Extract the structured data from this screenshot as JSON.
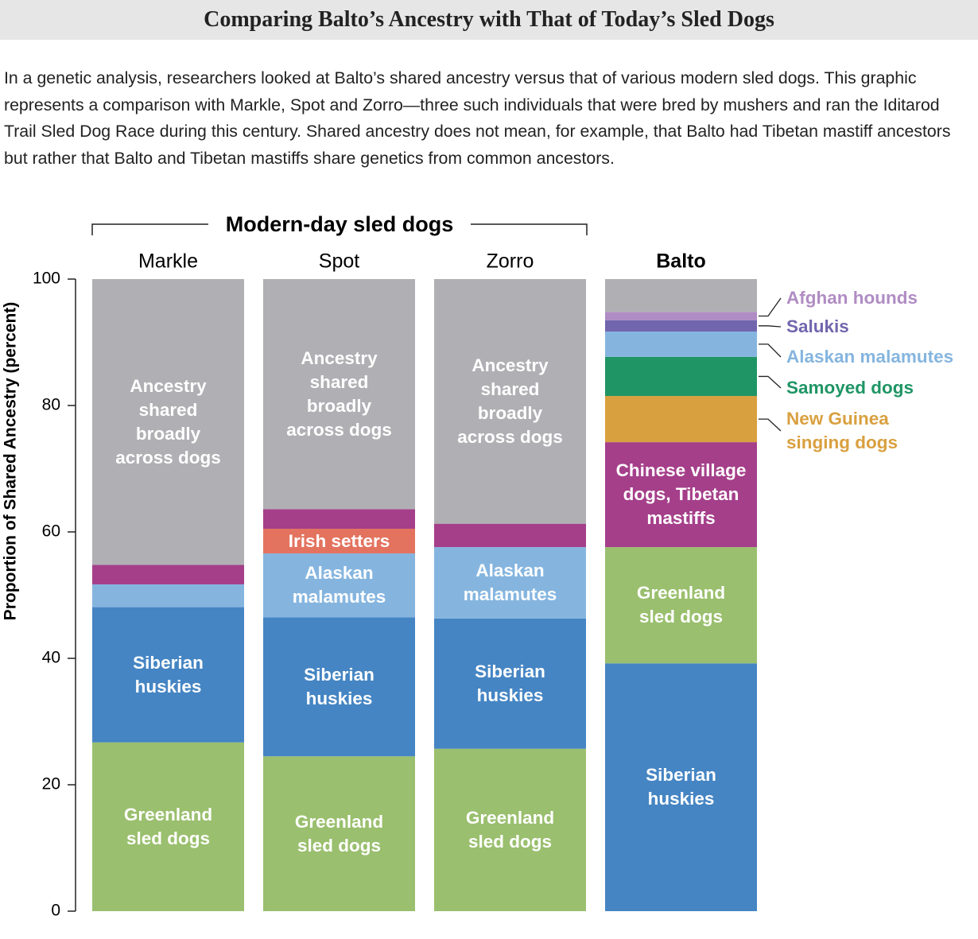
{
  "header": {
    "title": "Comparing Balto’s Ancestry with That of Today’s Sled Dogs",
    "description": "In a genetic analysis, researchers looked at Balto’s shared ancestry versus that of various modern sled dogs. This graphic represents a comparison with Markle, Spot and Zorro—three such individuals that were bred by mushers and ran the Iditarod Trail Sled Dog Race during this century. Shared ancestry does not mean, for example, that Balto had Tibetan mastiff ancestors but rather that Balto and Tibetan mastiffs share genetics from common ancestors."
  },
  "chart_data": {
    "type": "stacked-bar",
    "group_label": "Modern-day sled dogs",
    "ylabel": "Proportion of Shared Ancestry (percent)",
    "categories": [
      "Markle",
      "Spot",
      "Zorro",
      "Balto"
    ],
    "ylim": [
      0,
      100
    ],
    "yticks": [
      0,
      20,
      40,
      60,
      80,
      100
    ],
    "series": [
      {
        "name": "Greenland sled dogs",
        "color": "#9abf6e",
        "values": [
          26.7,
          24.5,
          25.7,
          18.4
        ]
      },
      {
        "name": "Siberian huskies",
        "color": "#4585c3",
        "values": [
          21.4,
          22.0,
          20.6,
          39.2
        ]
      },
      {
        "name": "Alaskan malamutes",
        "color": "#85b5df",
        "values": [
          3.6,
          10.1,
          11.3,
          4.0
        ]
      },
      {
        "name": "Irish setters",
        "color": "#e3735f",
        "values": [
          null,
          3.9,
          null,
          null
        ]
      },
      {
        "name": "Chinese village dogs, Tibetan mastiffs",
        "color": "#a53f8a",
        "values": [
          3.1,
          3.1,
          3.7,
          16.6
        ]
      },
      {
        "name": "New Guinea singing dogs",
        "color": "#d9a03f",
        "values": [
          null,
          null,
          null,
          7.3
        ]
      },
      {
        "name": "Samoyed dogs",
        "color": "#1f9565",
        "values": [
          null,
          null,
          null,
          6.2
        ]
      },
      {
        "name": "Salukis",
        "color": "#7166ad",
        "values": [
          null,
          null,
          null,
          1.8
        ]
      },
      {
        "name": "Afghan hounds",
        "color": "#b08cc4",
        "values": [
          null,
          null,
          null,
          1.3
        ]
      },
      {
        "name": "Ancestry shared broadly across dogs",
        "color": "#b0b0b4",
        "values": [
          45.2,
          36.4,
          38.7,
          5.2
        ]
      }
    ]
  }
}
